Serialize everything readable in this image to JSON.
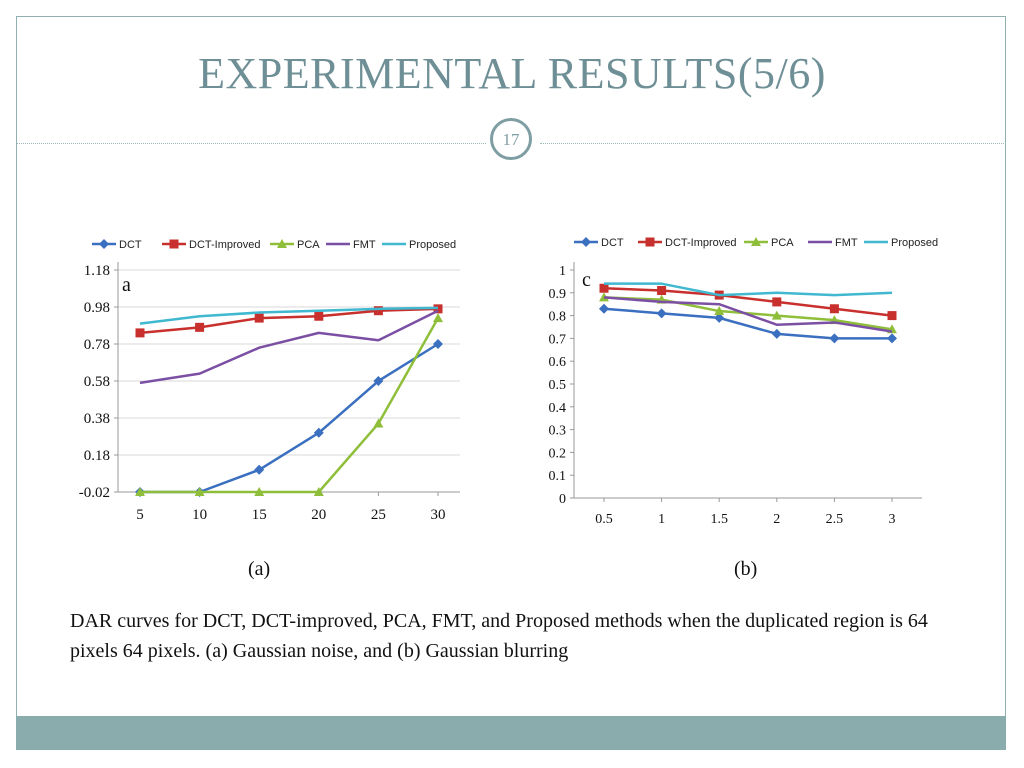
{
  "slide": {
    "title": "EXPERIMENTAL RESULTS(5/6)",
    "number": "17",
    "label_a": "(a)",
    "label_b": "(b)",
    "caption": "DAR curves for DCT, DCT-improved, PCA, FMT, and Proposed methods when the duplicated region is 64 pixels  64 pixels. (a) Gaussian noise, and (b) Gaussian blurring",
    "accent_color": "#6f8f96",
    "footer_color": "#8aacad"
  },
  "chart_data": [
    {
      "type": "line",
      "panel_letter": "a",
      "x": [
        5,
        10,
        15,
        20,
        25,
        30
      ],
      "x_tick_labels": [
        "5",
        "10",
        "15",
        "20",
        "25",
        "30"
      ],
      "y_tick_labels": [
        "-0.02",
        "0.18",
        "0.38",
        "0.58",
        "0.78",
        "0.98",
        "1.18"
      ],
      "ylim": [
        -0.02,
        1.18
      ],
      "grid": "horizontal",
      "legend_position": "top",
      "series": [
        {
          "name": "DCT",
          "color": "#3b6fbf",
          "marker": "diamond",
          "values": [
            -0.02,
            -0.02,
            0.1,
            0.3,
            0.58,
            0.78
          ]
        },
        {
          "name": "DCT-Improved",
          "color": "#c8302d",
          "marker": "square",
          "values": [
            0.84,
            0.87,
            0.92,
            0.93,
            0.96,
            0.97
          ]
        },
        {
          "name": "PCA",
          "color": "#8fbf3a",
          "marker": "triangle",
          "values": [
            -0.02,
            -0.02,
            -0.02,
            -0.02,
            0.35,
            0.92
          ]
        },
        {
          "name": "FMT",
          "color": "#7b4fa3",
          "marker": "none",
          "values": [
            0.57,
            0.62,
            0.76,
            0.84,
            0.8,
            0.96
          ]
        },
        {
          "name": "Proposed",
          "color": "#3fb8d0",
          "marker": "none",
          "values": [
            0.89,
            0.93,
            0.95,
            0.96,
            0.97,
            0.975
          ]
        }
      ]
    },
    {
      "type": "line",
      "panel_letter": "c",
      "x": [
        0.5,
        1,
        1.5,
        2,
        2.5,
        3
      ],
      "x_tick_labels": [
        "0.5",
        "1",
        "1.5",
        "2",
        "2.5",
        "3"
      ],
      "y_tick_labels": [
        "0",
        "0.1",
        "0.2",
        "0.3",
        "0.4",
        "0.5",
        "0.6",
        "0.7",
        "0.8",
        "0.9",
        "1"
      ],
      "ylim": [
        0,
        1
      ],
      "grid": "none",
      "legend_position": "top",
      "series": [
        {
          "name": "DCT",
          "color": "#3b6fbf",
          "marker": "diamond",
          "values": [
            0.83,
            0.81,
            0.79,
            0.72,
            0.7,
            0.7
          ]
        },
        {
          "name": "DCT-Improved",
          "color": "#c8302d",
          "marker": "square",
          "values": [
            0.92,
            0.91,
            0.89,
            0.86,
            0.83,
            0.8
          ]
        },
        {
          "name": "PCA",
          "color": "#8fbf3a",
          "marker": "triangle",
          "values": [
            0.88,
            0.87,
            0.82,
            0.8,
            0.78,
            0.74
          ]
        },
        {
          "name": "FMT",
          "color": "#7b4fa3",
          "marker": "none",
          "values": [
            0.88,
            0.86,
            0.85,
            0.76,
            0.77,
            0.73
          ]
        },
        {
          "name": "Proposed",
          "color": "#3fb8d0",
          "marker": "none",
          "values": [
            0.94,
            0.94,
            0.89,
            0.9,
            0.89,
            0.9
          ]
        }
      ]
    }
  ]
}
